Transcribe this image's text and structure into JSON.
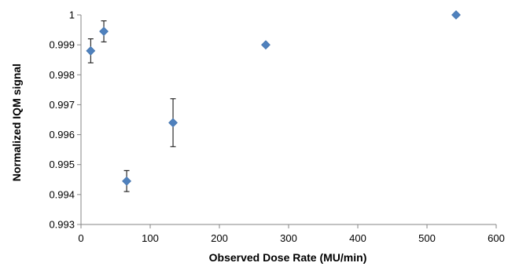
{
  "chart_data": {
    "type": "scatter",
    "title": "",
    "xlabel": "Observed Dose Rate (MU/min)",
    "ylabel": "Normalized IQM signal",
    "xlim": [
      0,
      600
    ],
    "ylim": [
      0.993,
      1
    ],
    "x_ticks": [
      0,
      100,
      200,
      300,
      400,
      500,
      600
    ],
    "x_tick_labels": [
      "0",
      "100",
      "200",
      "300",
      "400",
      "500",
      "600"
    ],
    "y_ticks": [
      0.993,
      0.994,
      0.995,
      0.996,
      0.997,
      0.998,
      0.999,
      1
    ],
    "y_tick_labels": [
      "0.993",
      "0.994",
      "0.995",
      "0.996",
      "0.997",
      "0.998",
      "0.999",
      "1"
    ],
    "grid": false,
    "legend": "none",
    "marker": "diamond",
    "marker_color": "#4F81BD",
    "error_bar_color": "#000000",
    "series": [
      {
        "points": [
          {
            "x": 14,
            "y": 0.9988,
            "err": 0.0004
          },
          {
            "x": 33,
            "y": 0.99945,
            "err": 0.00035
          },
          {
            "x": 66,
            "y": 0.99445,
            "err": 0.00035
          },
          {
            "x": 133,
            "y": 0.9964,
            "err": 0.0008
          },
          {
            "x": 267,
            "y": 0.999,
            "err": 3e-05
          },
          {
            "x": 542,
            "y": 1.0,
            "err": 0.0
          }
        ]
      }
    ]
  }
}
